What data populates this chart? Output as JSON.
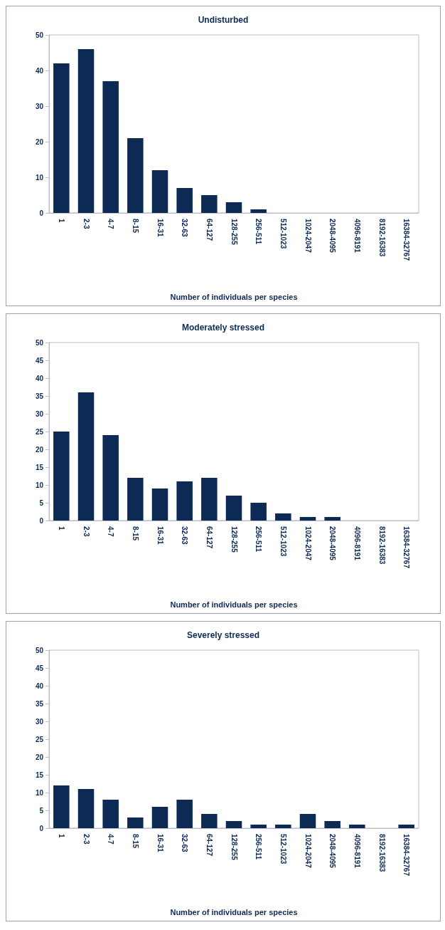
{
  "chart_data": [
    {
      "type": "bar",
      "title": "Undisturbed",
      "xlabel": "Number of individuals per species",
      "categories": [
        "1",
        "2-3",
        "4-7",
        "8-15",
        "16-31",
        "32-63",
        "64-127",
        "128-255",
        "256-511",
        "512-1023",
        "1024-2047",
        "2048-4095",
        "4096-8191",
        "8192-16383",
        "16384-32767"
      ],
      "values": [
        42,
        46,
        37,
        21,
        12,
        7,
        5,
        3,
        1,
        0,
        0,
        0,
        0,
        0,
        0
      ],
      "color": "#0d2a55",
      "ylim": [
        0,
        50
      ],
      "yticks": [
        0,
        10,
        20,
        30,
        40,
        50
      ],
      "grid": false
    },
    {
      "type": "bar",
      "title": "Moderately stressed",
      "xlabel": "Number of individuals per species",
      "categories": [
        "1",
        "2-3",
        "4-7",
        "8-15",
        "16-31",
        "32-63",
        "64-127",
        "128-255",
        "256-511",
        "512-1023",
        "1024-2047",
        "2048-4095",
        "4096-8191",
        "8192-16383",
        "16384-32767"
      ],
      "values": [
        25,
        36,
        24,
        12,
        9,
        11,
        12,
        7,
        5,
        2,
        1,
        1,
        0,
        0,
        0
      ],
      "color": "#0d2a55",
      "ylim": [
        0,
        50
      ],
      "yticks": [
        0,
        5,
        10,
        15,
        20,
        25,
        30,
        35,
        40,
        45,
        50
      ],
      "grid": false
    },
    {
      "type": "bar",
      "title": "Severely stressed",
      "xlabel": "Number of individuals per species",
      "categories": [
        "1",
        "2-3",
        "4-7",
        "8-15",
        "16-31",
        "32-63",
        "64-127",
        "128-255",
        "256-511",
        "512-1023",
        "1024-2047",
        "2048-4095",
        "4096-8191",
        "8192-16383",
        "16384-32767"
      ],
      "values": [
        12,
        11,
        8,
        3,
        6,
        8,
        4,
        2,
        1,
        1,
        4,
        2,
        1,
        0,
        1
      ],
      "color": "#0d2a55",
      "ylim": [
        0,
        50
      ],
      "yticks": [
        0,
        5,
        10,
        15,
        20,
        25,
        30,
        35,
        40,
        45,
        50
      ],
      "grid": false
    }
  ]
}
